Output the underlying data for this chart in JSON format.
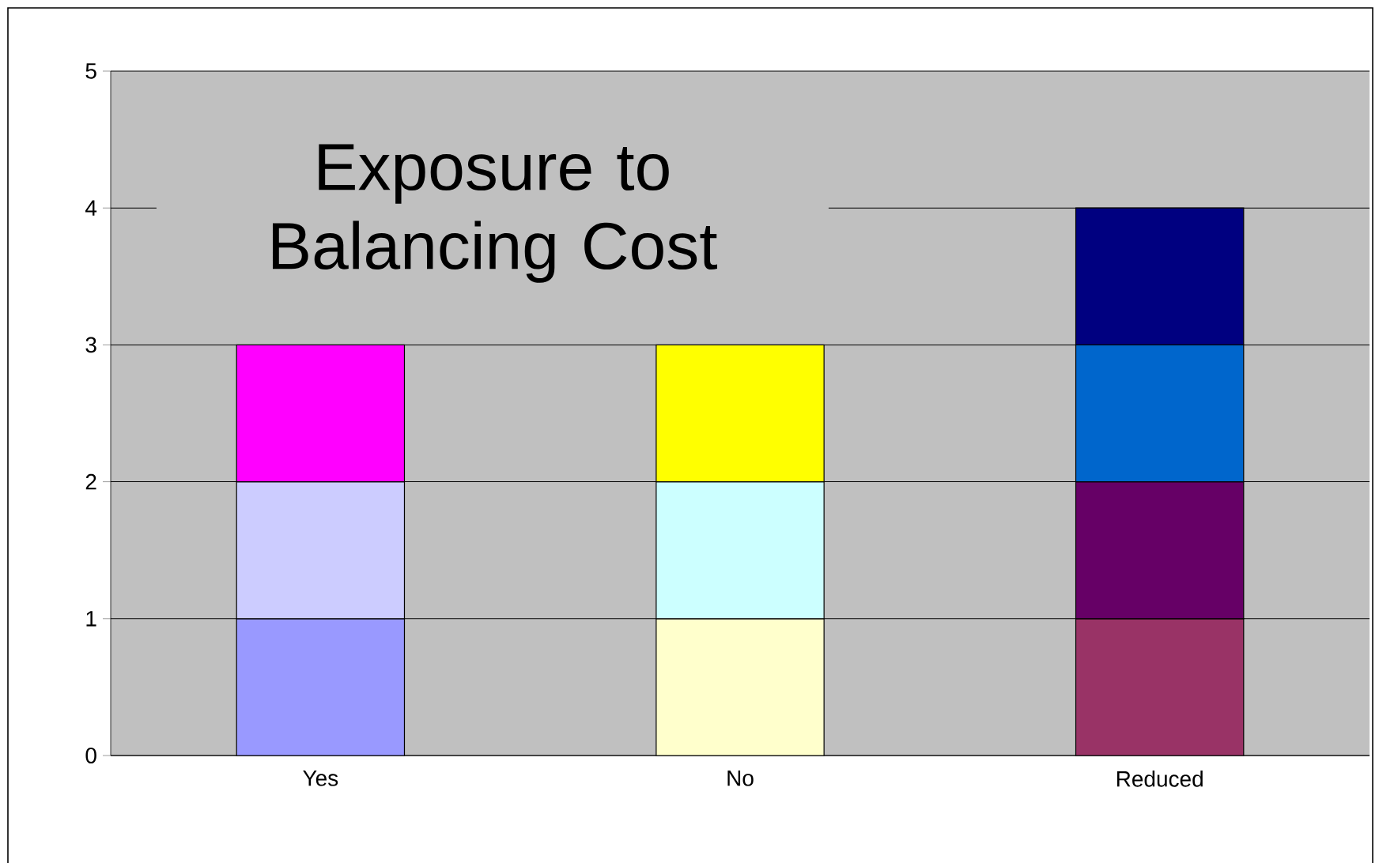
{
  "chart_data": {
    "type": "bar",
    "title": "Exposure to Balancing Cost",
    "stacked": true,
    "categories": [
      "Yes",
      "No",
      "Reduced"
    ],
    "series": [
      {
        "values": [
          1,
          1,
          1
        ],
        "colors": [
          "#9999ff",
          "#ffffcc",
          "#993366"
        ]
      },
      {
        "values": [
          1,
          1,
          1
        ],
        "colors": [
          "#ccccff",
          "#ccffff",
          "#660066"
        ]
      },
      {
        "values": [
          1,
          1,
          1
        ],
        "colors": [
          "#ff00ff",
          "#ffff00",
          "#0066cc"
        ]
      },
      {
        "values": [
          null,
          null,
          1
        ],
        "colors": [
          null,
          null,
          "#000080"
        ]
      }
    ],
    "ylim": [
      0,
      5
    ],
    "yticks": [
      0,
      1,
      2,
      3,
      4,
      5
    ],
    "grid": "y"
  }
}
